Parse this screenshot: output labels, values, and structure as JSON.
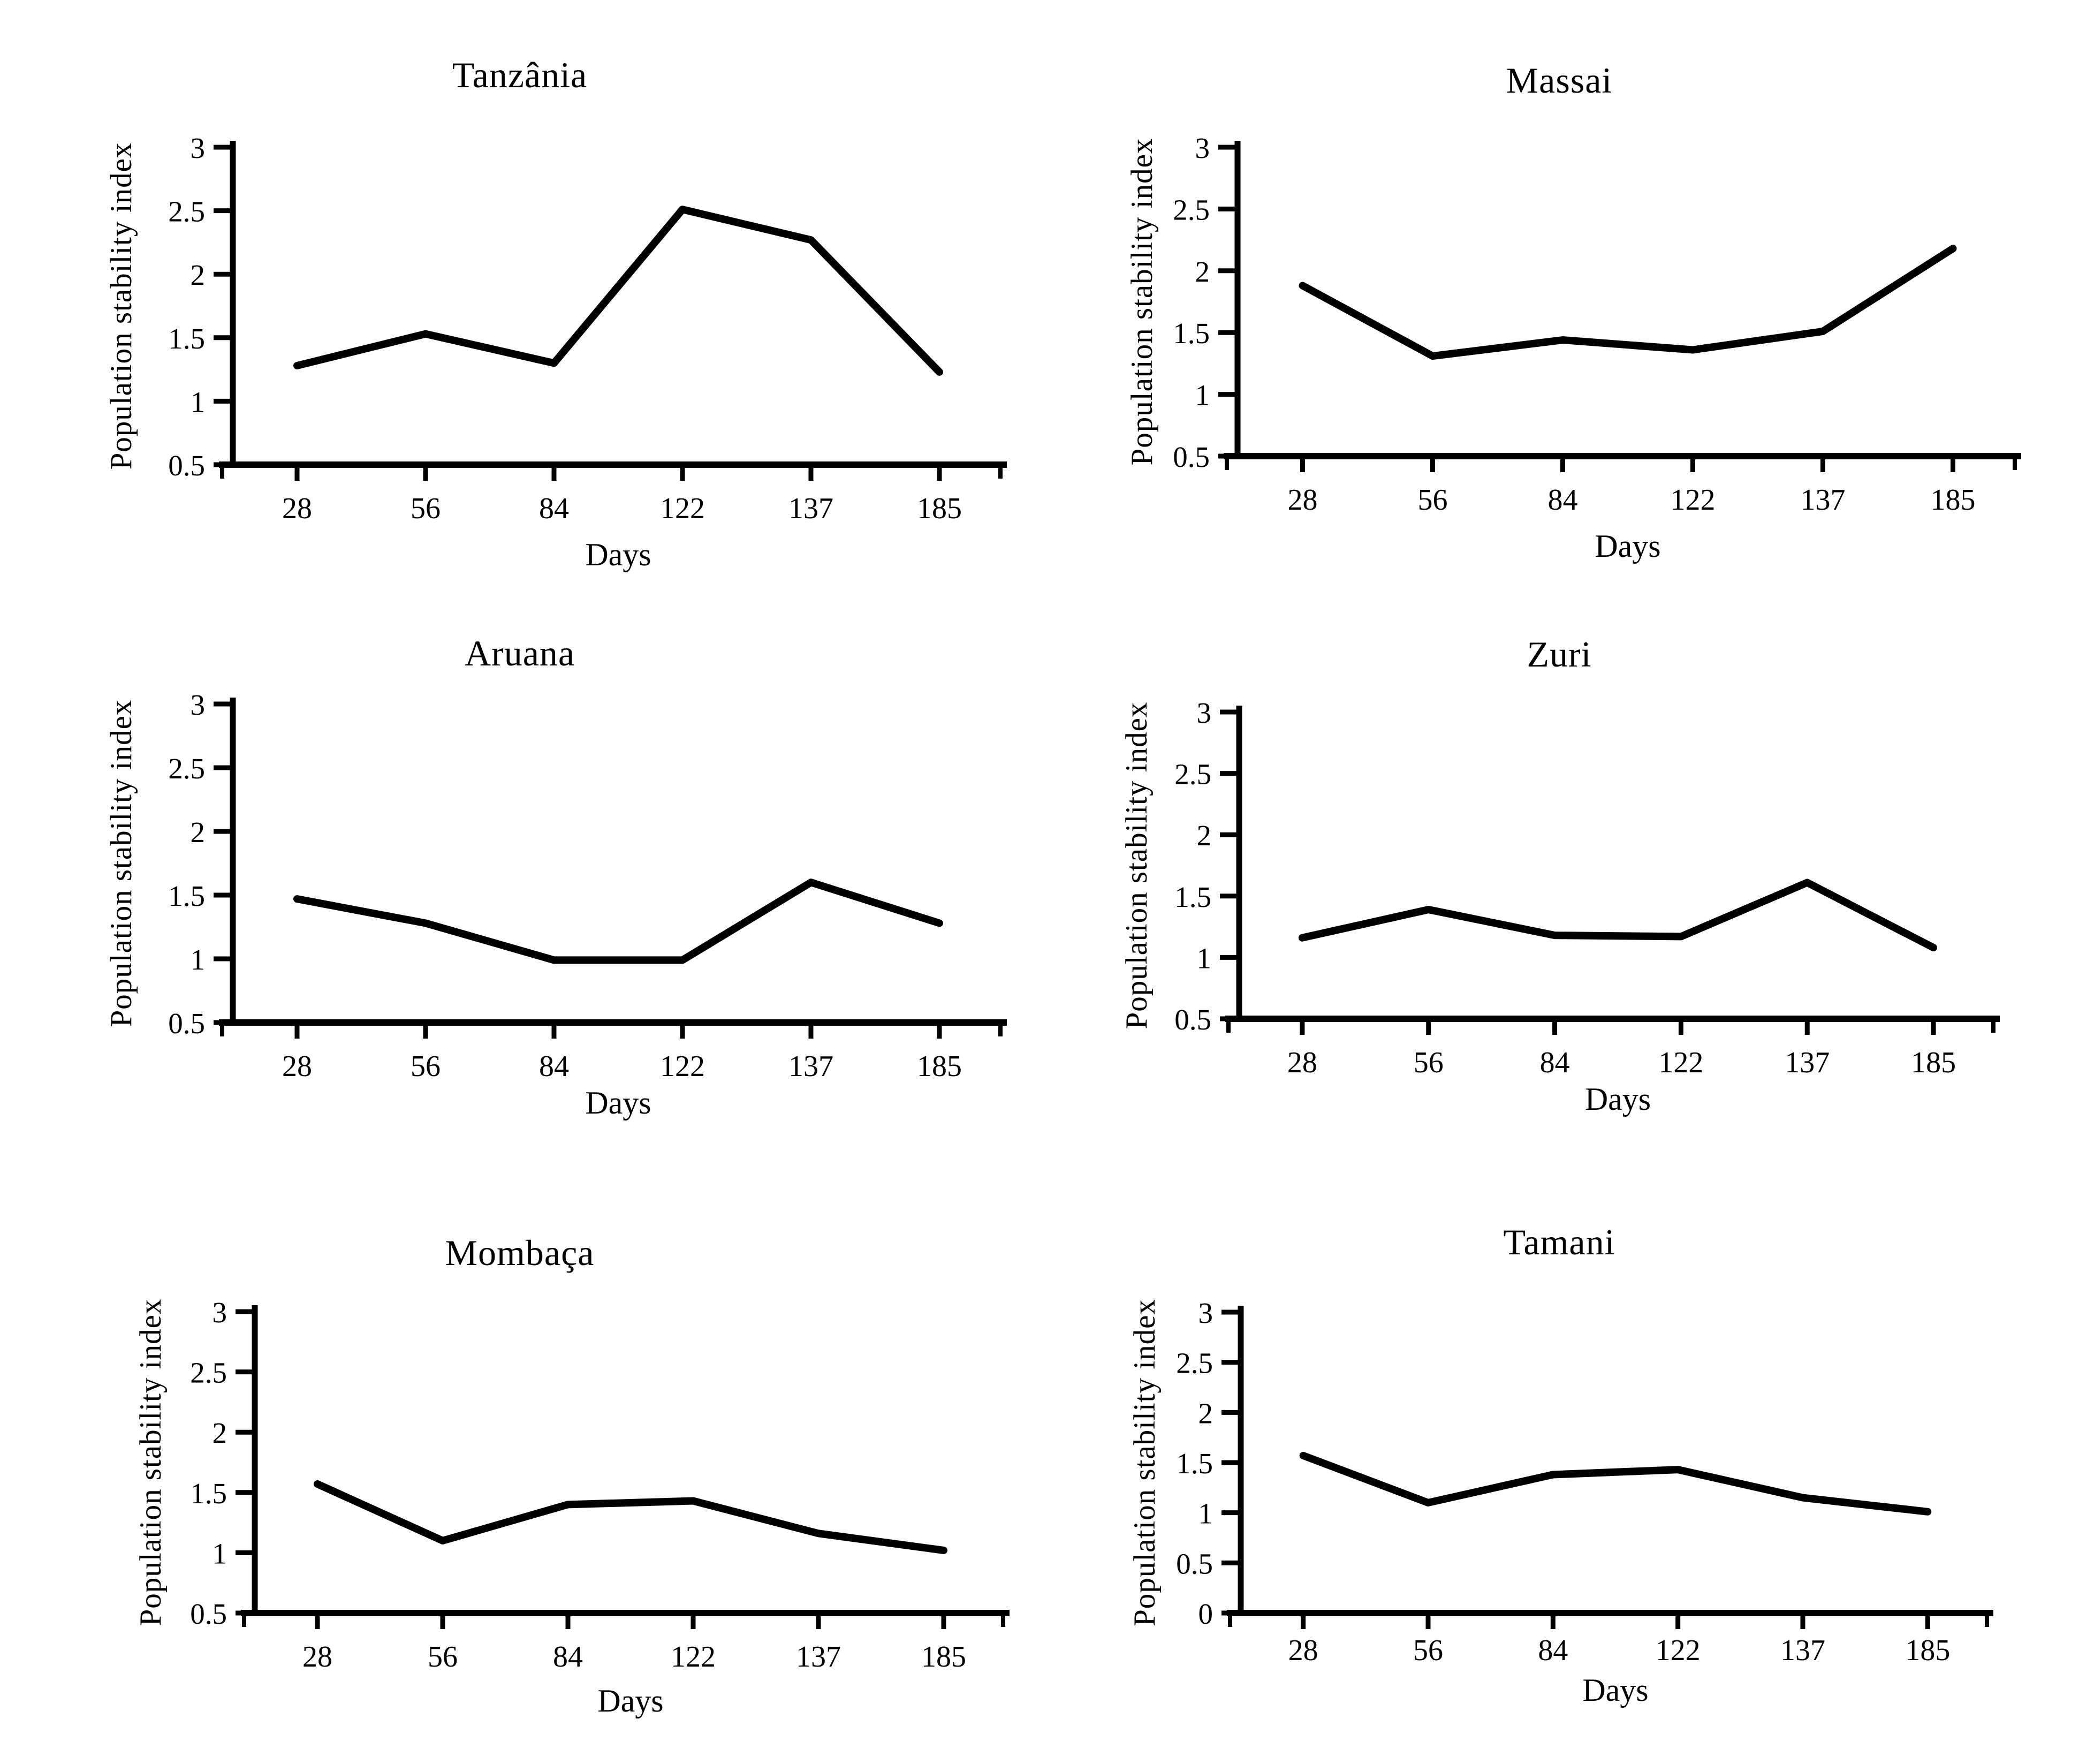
{
  "page": {
    "background": "#ffffff",
    "text_color": "#000000"
  },
  "chart_data": [
    {
      "id": "tanzania",
      "type": "line",
      "title": "Tanzânia",
      "xlabel": "Days",
      "ylabel": "Population stability index",
      "categories": [
        28,
        56,
        84,
        122,
        137,
        185
      ],
      "values": [
        1.28,
        1.53,
        1.3,
        2.51,
        2.27,
        1.23
      ],
      "ylim": [
        0.5,
        3
      ],
      "yticks": [
        0.5,
        1,
        1.5,
        2,
        2.5,
        3
      ],
      "grid": false,
      "legend": "none",
      "line_color": "#000000"
    },
    {
      "id": "massai",
      "type": "line",
      "title": "Massai",
      "xlabel": "Days",
      "ylabel": "Population stability index",
      "categories": [
        28,
        56,
        84,
        122,
        137,
        185
      ],
      "values": [
        1.88,
        1.31,
        1.44,
        1.36,
        1.51,
        2.18
      ],
      "ylim": [
        0.5,
        3
      ],
      "yticks": [
        0.5,
        1,
        1.5,
        2,
        2.5,
        3
      ],
      "grid": false,
      "legend": "none",
      "line_color": "#000000"
    },
    {
      "id": "aruana",
      "type": "line",
      "title": "Aruana",
      "xlabel": "Days",
      "ylabel": "Population stability index",
      "categories": [
        28,
        56,
        84,
        122,
        137,
        185
      ],
      "values": [
        1.47,
        1.28,
        0.99,
        0.99,
        1.6,
        1.28
      ],
      "ylim": [
        0.5,
        3
      ],
      "yticks": [
        0.5,
        1,
        1.5,
        2,
        2.5,
        3
      ],
      "grid": false,
      "legend": "none",
      "line_color": "#000000"
    },
    {
      "id": "zuri",
      "type": "line",
      "title": "Zuri",
      "xlabel": "Days",
      "ylabel": "Population stability index",
      "categories": [
        28,
        56,
        84,
        122,
        137,
        185
      ],
      "values": [
        1.16,
        1.39,
        1.18,
        1.17,
        1.61,
        1.08
      ],
      "ylim": [
        0.5,
        3
      ],
      "yticks": [
        0.5,
        1,
        1.5,
        2,
        2.5,
        3
      ],
      "grid": false,
      "legend": "none",
      "line_color": "#000000"
    },
    {
      "id": "mombaca",
      "type": "line",
      "title": "Mombaça",
      "xlabel": "Days",
      "ylabel": "Population stability index",
      "categories": [
        28,
        56,
        84,
        122,
        137,
        185
      ],
      "values": [
        1.57,
        1.1,
        1.4,
        1.43,
        1.16,
        1.02
      ],
      "ylim": [
        0.5,
        3
      ],
      "yticks": [
        0.5,
        1,
        1.5,
        2,
        2.5,
        3
      ],
      "grid": false,
      "legend": "none",
      "line_color": "#000000"
    },
    {
      "id": "tamani",
      "type": "line",
      "title": "Tamani",
      "xlabel": "Days",
      "ylabel": "Population stability index",
      "categories": [
        28,
        56,
        84,
        122,
        137,
        185
      ],
      "values": [
        1.57,
        1.1,
        1.38,
        1.43,
        1.15,
        1.01
      ],
      "ylim": [
        0,
        3
      ],
      "yticks": [
        0,
        0.5,
        1,
        1.5,
        2,
        2.5,
        3
      ],
      "grid": false,
      "legend": "none",
      "line_color": "#000000"
    }
  ]
}
